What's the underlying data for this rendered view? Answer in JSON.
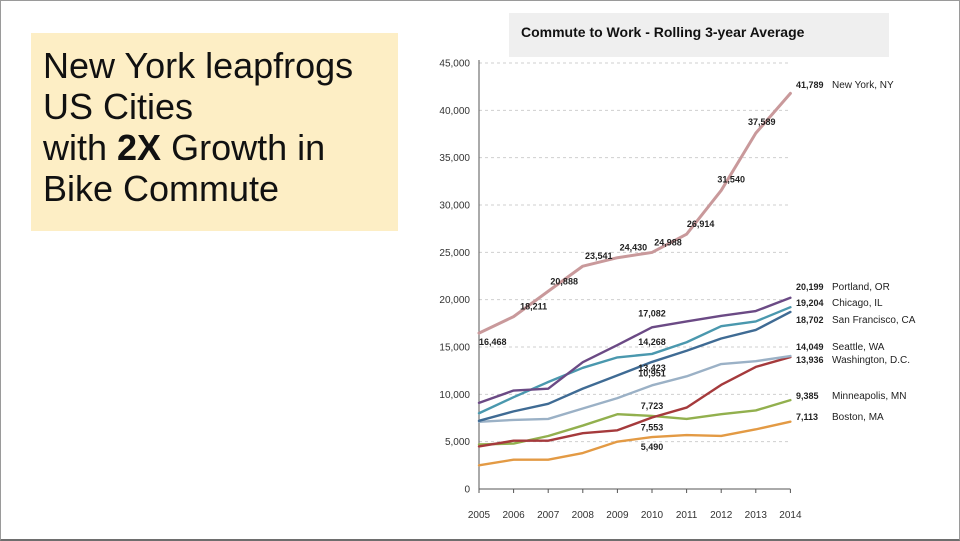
{
  "headline": {
    "line1": "New York leapfrogs",
    "line2": "US Cities",
    "line3_prefix": "with ",
    "line3_bold": "2X",
    "line3_suffix": " Growth in",
    "line4": "Bike Commute"
  },
  "chart_data": {
    "type": "line",
    "title": "Commute to Work - Rolling 3-year Average",
    "xlabel": "",
    "ylabel": "",
    "x": [
      "2005",
      "2006",
      "2007",
      "2008",
      "2009",
      "2010",
      "2011",
      "2012",
      "2013",
      "2014"
    ],
    "ylim": [
      0,
      45000
    ],
    "yticks": [
      0,
      5000,
      10000,
      15000,
      20000,
      25000,
      30000,
      35000,
      40000,
      45000
    ],
    "ytick_labels": [
      "0",
      "5,000",
      "10,000",
      "15,000",
      "20,000",
      "25,000",
      "30,000",
      "35,000",
      "40,000",
      "45,000"
    ],
    "grid": "horizontal dashed",
    "series": [
      {
        "name": "New York, NY",
        "color": "#c9999b",
        "end_label": "41,789",
        "values": [
          16468,
          18211,
          20888,
          23541,
          24430,
          24988,
          26914,
          31540,
          37589,
          41789
        ],
        "point_labels": [
          "16,468",
          "18,211",
          "20,888",
          "23,541",
          "24,430",
          "24,988",
          "26,914",
          "31,540",
          "37,589",
          "41,789"
        ]
      },
      {
        "name": "Portland, OR",
        "color": "#6b4a85",
        "end_label": "20,199",
        "values": [
          9100,
          10400,
          10600,
          13400,
          15200,
          17082,
          17700,
          18300,
          18800,
          20199
        ],
        "point_labels": [
          "",
          "",
          "",
          "",
          "",
          "17,082",
          "",
          "",
          "",
          ""
        ]
      },
      {
        "name": "Chicago, IL",
        "color": "#4a98ae",
        "end_label": "19,204",
        "values": [
          8000,
          9700,
          11300,
          12800,
          13900,
          14268,
          15500,
          17200,
          17700,
          19204
        ],
        "point_labels": [
          "",
          "",
          "",
          "",
          "",
          "14,268",
          "",
          "",
          "",
          ""
        ]
      },
      {
        "name": "San Francisco, CA",
        "color": "#3f6b94",
        "end_label": "18,702",
        "values": [
          7200,
          8200,
          9000,
          10600,
          12000,
          13423,
          14600,
          15900,
          16800,
          18702
        ],
        "point_labels": [
          "",
          "",
          "",
          "",
          "",
          "13,423",
          "",
          "",
          "",
          ""
        ]
      },
      {
        "name": "Seattle, WA",
        "color": "#9bb1c6",
        "end_label": "14,049",
        "values": [
          7100,
          7300,
          7400,
          8500,
          9600,
          10951,
          11900,
          13200,
          13500,
          14049
        ],
        "point_labels": [
          "",
          "",
          "",
          "",
          "",
          "10,951",
          "",
          "",
          "",
          ""
        ]
      },
      {
        "name": "Washington, D.C.",
        "color": "#a53a3c",
        "end_label": "13,936",
        "values": [
          4500,
          5100,
          5100,
          5900,
          6200,
          7553,
          8600,
          11000,
          12900,
          13936
        ],
        "point_labels": [
          "",
          "",
          "",
          "",
          "",
          "7,553",
          "",
          "",
          "",
          ""
        ]
      },
      {
        "name": "Minneapolis, MN",
        "color": "#92b04e",
        "end_label": "9,385",
        "values": [
          4700,
          4800,
          5600,
          6700,
          7900,
          7723,
          7400,
          7900,
          8300,
          9385
        ],
        "point_labels": [
          "",
          "",
          "",
          "",
          "",
          "7,723",
          "",
          "",
          "",
          ""
        ]
      },
      {
        "name": "Boston, MA",
        "color": "#e39a44",
        "end_label": "7,113",
        "values": [
          2500,
          3100,
          3100,
          3800,
          5000,
          5490,
          5700,
          5600,
          6300,
          7113
        ],
        "point_labels": [
          "",
          "",
          "",
          "",
          "",
          "5,490",
          "",
          "",
          "",
          ""
        ]
      }
    ]
  }
}
